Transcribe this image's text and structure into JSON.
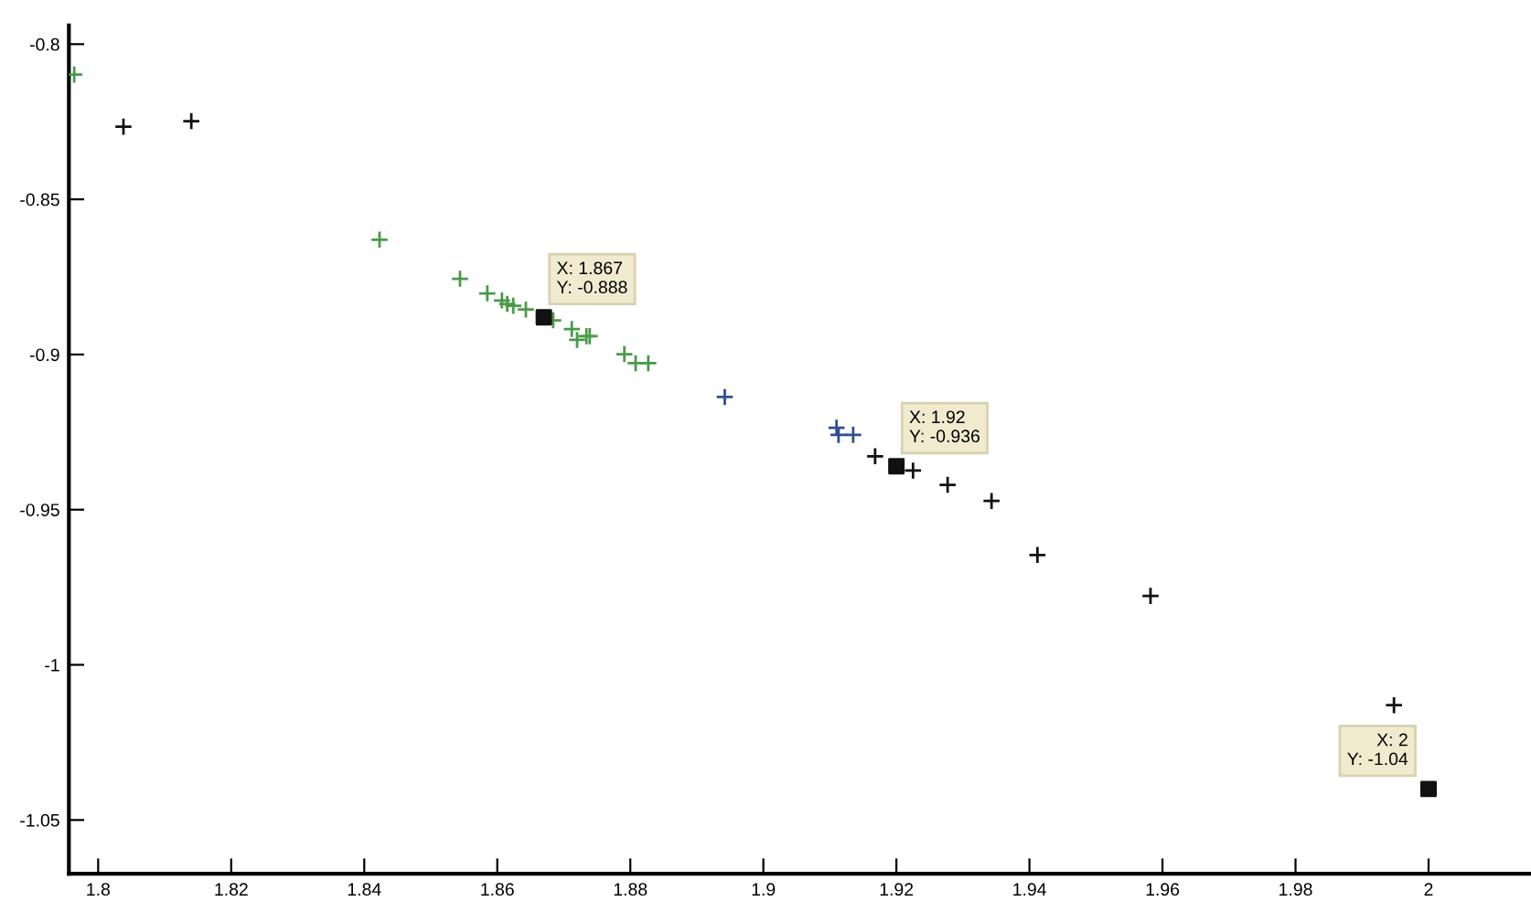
{
  "chart_data": {
    "type": "scatter",
    "xlim": [
      1.7956,
      2.0154
    ],
    "ylim": [
      -1.0673,
      -0.794
    ],
    "xticks": [
      1.8,
      1.82,
      1.84,
      1.86,
      1.88,
      1.9,
      1.92,
      1.94,
      1.96,
      1.98,
      2
    ],
    "yticks": [
      -0.8,
      -0.85,
      -0.9,
      -0.95,
      -1,
      -1.05
    ],
    "grid": false,
    "legend": false,
    "series": [
      {
        "color": "#4a9a4a",
        "marker": "cross",
        "x": [
          1.7964,
          1.8423,
          1.8544,
          1.8585,
          1.8607,
          1.8615,
          1.8624,
          1.8643,
          1.8684,
          1.8712,
          1.872,
          1.8734,
          1.8739,
          1.8791,
          1.8808,
          1.8827
        ],
        "values": [
          -0.8098,
          -0.863,
          -0.8756,
          -0.8803,
          -0.8826,
          -0.8837,
          -0.8843,
          -0.8855,
          -0.889,
          -0.8918,
          -0.8953,
          -0.8941,
          -0.8941,
          -0.8999,
          -0.9028,
          -0.9028
        ]
      },
      {
        "color": "#2f4f8f",
        "marker": "cross",
        "x": [
          1.8942,
          1.911,
          1.9113,
          1.9135
        ],
        "values": [
          -0.9137,
          -0.9236,
          -0.9259,
          -0.9259
        ]
      },
      {
        "color": "#111111",
        "marker": "cross",
        "x": [
          1.8038,
          1.814,
          1.9168,
          1.9225,
          1.9277,
          1.9343,
          1.9412,
          1.9582,
          1.9948
        ],
        "values": [
          -0.8266,
          -0.8248,
          -0.9328,
          -0.9374,
          -0.942,
          -0.9472,
          -0.9646,
          -0.9778,
          -1.013
        ]
      },
      {
        "color": "#111111",
        "marker": "square",
        "x": [
          1.867,
          1.92,
          2
        ],
        "values": [
          -0.888,
          -0.936,
          -1.04
        ]
      }
    ],
    "annotations": [
      {
        "text": "X: 1.867\nY: -0.888",
        "x": 1.867,
        "y": -0.888
      },
      {
        "text": "X: 1.92\nY: -0.936",
        "x": 1.92,
        "y": -0.936
      },
      {
        "text": "X: 2\nY: -1.04",
        "x": 2,
        "y": -1.04
      }
    ]
  }
}
